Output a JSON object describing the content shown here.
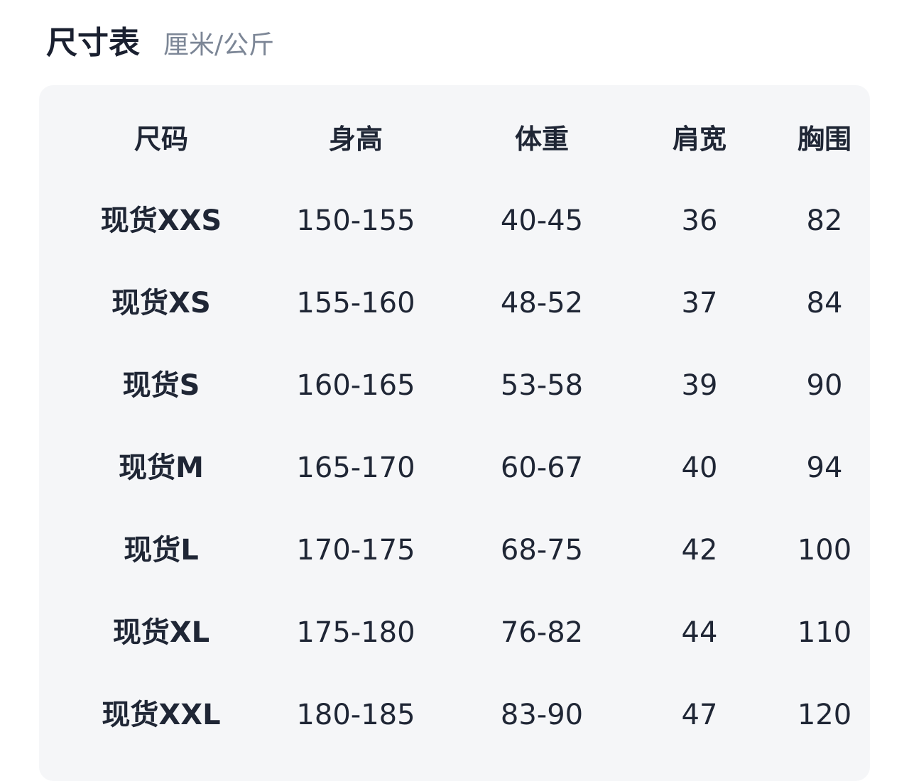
{
  "title": "尺寸表",
  "unit": "厘米/公斤",
  "table": {
    "headers": [
      "尺码",
      "身高",
      "体重",
      "肩宽",
      "胸围"
    ],
    "rows": [
      [
        "现货XXS",
        "150-155",
        "40-45",
        "36",
        "82"
      ],
      [
        "现货XS",
        "155-160",
        "48-52",
        "37",
        "84"
      ],
      [
        "现货S",
        "160-165",
        "53-58",
        "39",
        "90"
      ],
      [
        "现货M",
        "165-170",
        "60-67",
        "40",
        "94"
      ],
      [
        "现货L",
        "170-175",
        "68-75",
        "42",
        "100"
      ],
      [
        "现货XL",
        "175-180",
        "76-82",
        "44",
        "110"
      ],
      [
        "现货XXL",
        "180-185",
        "83-90",
        "47",
        "120"
      ]
    ]
  }
}
